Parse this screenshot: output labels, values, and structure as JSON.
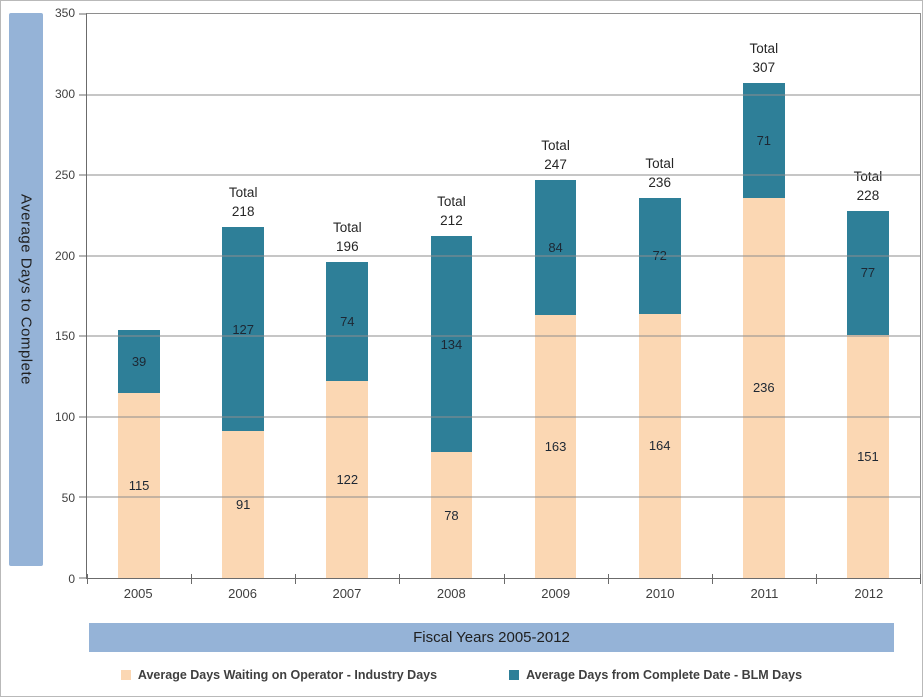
{
  "chart_data": {
    "type": "bar",
    "stacked": true,
    "categories": [
      "2005",
      "2006",
      "2007",
      "2008",
      "2009",
      "2010",
      "2011",
      "2012"
    ],
    "series": [
      {
        "name": "Average Days Waiting on Operator - Industry Days",
        "color": "#fbd7b3",
        "values": [
          115,
          91,
          122,
          78,
          163,
          164,
          236,
          151
        ]
      },
      {
        "name": "Average Days from Complete Date - BLM Days",
        "color": "#2e7f98",
        "values": [
          39,
          127,
          74,
          134,
          84,
          72,
          71,
          77
        ]
      }
    ],
    "totals": [
      null,
      218,
      196,
      212,
      247,
      236,
      307,
      228
    ],
    "total_label_prefix": "Total",
    "ylabel": "Average Days to Complete",
    "xlabel": "Fiscal Years 2005-2012",
    "ylim": [
      0,
      350
    ],
    "yticks": [
      0,
      50,
      100,
      150,
      200,
      250,
      300,
      350
    ],
    "grid": true,
    "legend_position": "bottom"
  },
  "colors": {
    "axis_title_bar": "#95b3d7",
    "gridline": "#8e8e8e",
    "axis_line": "#6b6b6b",
    "text_dark": "#262626"
  }
}
